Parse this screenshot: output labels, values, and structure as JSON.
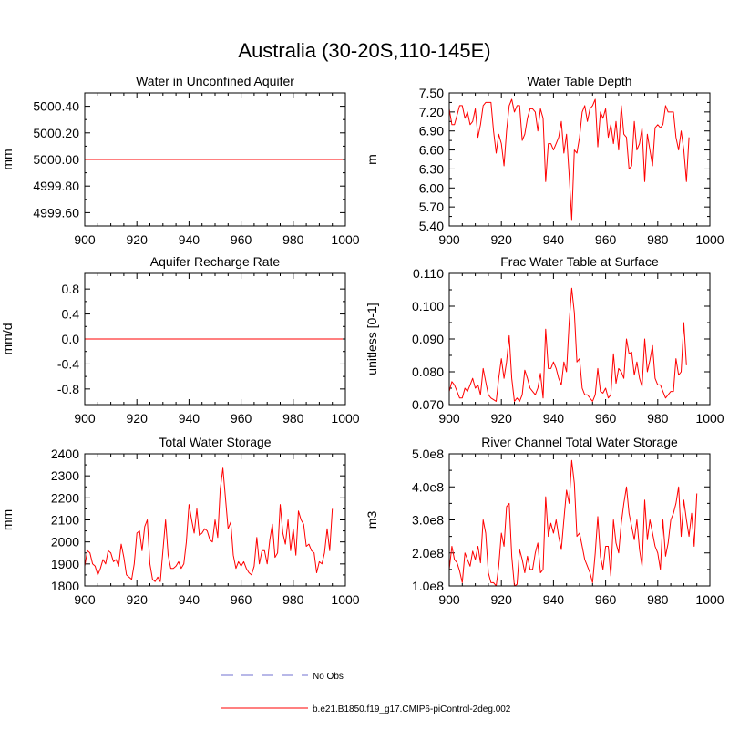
{
  "figure": {
    "title": "Australia (30-20S,110-145E)"
  },
  "legend": {
    "items": [
      {
        "label": "No Obs",
        "style": "dashed",
        "color": "#a0a0e0"
      },
      {
        "label": "b.e21.B1850.f19_g17.CMIP6-piControl-2deg.002",
        "style": "solid",
        "color": "#ff0000"
      }
    ]
  },
  "chart_data": [
    {
      "type": "line",
      "title": "Water in Unconfined Aquifer",
      "ylabel": "mm",
      "xlim": [
        900,
        1000
      ],
      "ylim": [
        4999.5,
        5000.5
      ],
      "xticks": [
        900,
        920,
        940,
        960,
        980,
        1000
      ],
      "yticks": [
        4999.6,
        4999.8,
        5000.0,
        5000.2,
        5000.4
      ],
      "yticklabels": [
        "4999.60",
        "4999.80",
        "5000.00",
        "5000.20",
        "5000.40"
      ],
      "series": [
        {
          "name": "b.e21.B1850.f19_g17.CMIP6-piControl-2deg.002",
          "color": "#ff0000",
          "x": [
            900,
            999
          ],
          "values": [
            5000.0,
            5000.0
          ]
        }
      ]
    },
    {
      "type": "line",
      "title": "Water Table Depth",
      "ylabel": "m",
      "xlim": [
        900,
        1000
      ],
      "ylim": [
        5.4,
        7.5
      ],
      "xticks": [
        900,
        920,
        940,
        960,
        980,
        1000
      ],
      "yticks": [
        5.4,
        5.7,
        6.0,
        6.3,
        6.6,
        6.9,
        7.2,
        7.5
      ],
      "yticklabels": [
        "5.40",
        "5.70",
        "6.00",
        "6.30",
        "6.60",
        "6.90",
        "7.20",
        "7.50"
      ],
      "series": [
        {
          "name": "b.e21.B1850.f19_g17.CMIP6-piControl-2deg.002",
          "color": "#ff0000",
          "x_start": 900,
          "values": [
            7.25,
            7.0,
            7.0,
            7.15,
            7.3,
            7.3,
            7.1,
            7.2,
            7.0,
            7.05,
            7.25,
            6.8,
            7.0,
            7.3,
            7.35,
            7.35,
            7.35,
            6.9,
            6.55,
            6.85,
            6.7,
            6.35,
            6.9,
            7.3,
            7.4,
            7.2,
            7.3,
            7.3,
            6.75,
            6.85,
            7.1,
            7.25,
            7.25,
            7.2,
            6.9,
            7.25,
            7.1,
            6.1,
            6.7,
            6.7,
            6.6,
            6.7,
            6.8,
            7.05,
            6.55,
            6.85,
            6.2,
            5.5,
            6.6,
            6.55,
            6.8,
            7.2,
            7.3,
            7.05,
            7.25,
            7.3,
            7.4,
            6.65,
            7.2,
            7.1,
            7.25,
            6.8,
            7.0,
            6.7,
            7.05,
            6.6,
            7.3,
            6.85,
            6.8,
            6.3,
            6.35,
            7.05,
            6.6,
            6.7,
            6.95,
            6.1,
            6.85,
            6.6,
            6.35,
            6.95,
            7.0,
            6.95,
            7.0,
            7.3,
            7.2,
            7.2,
            7.2,
            6.8,
            6.6,
            6.9,
            6.6,
            6.1,
            6.8
          ]
        }
      ]
    },
    {
      "type": "line",
      "title": "Aquifer Recharge Rate",
      "ylabel": "mm/d",
      "xlim": [
        900,
        1000
      ],
      "ylim": [
        -1.05,
        1.05
      ],
      "xticks": [
        900,
        920,
        940,
        960,
        980,
        1000
      ],
      "yticks": [
        -0.8,
        -0.4,
        0.0,
        0.4,
        0.8
      ],
      "yticklabels": [
        "-0.8",
        "-0.4",
        "0.0",
        "0.4",
        "0.8"
      ],
      "series": [
        {
          "name": "b.e21.B1850.f19_g17.CMIP6-piControl-2deg.002",
          "color": "#ff0000",
          "x": [
            900,
            999
          ],
          "values": [
            0.0,
            0.0
          ]
        }
      ]
    },
    {
      "type": "line",
      "title": "Frac Water Table at Surface",
      "ylabel": "unitless [0-1]",
      "xlim": [
        900,
        1000
      ],
      "ylim": [
        0.07,
        0.11
      ],
      "xticks": [
        900,
        920,
        940,
        960,
        980,
        1000
      ],
      "yticks": [
        0.07,
        0.08,
        0.09,
        0.1,
        0.11
      ],
      "yticklabels": [
        "0.070",
        "0.080",
        "0.090",
        "0.100",
        "0.110"
      ],
      "series": [
        {
          "name": "b.e21.B1850.f19_g17.CMIP6-piControl-2deg.002",
          "color": "#ff0000",
          "x_start": 900,
          "values": [
            0.074,
            0.077,
            0.076,
            0.074,
            0.072,
            0.072,
            0.075,
            0.074,
            0.076,
            0.078,
            0.075,
            0.076,
            0.073,
            0.081,
            0.077,
            0.073,
            0.072,
            0.0715,
            0.071,
            0.078,
            0.084,
            0.078,
            0.083,
            0.091,
            0.078,
            0.071,
            0.072,
            0.071,
            0.073,
            0.0805,
            0.078,
            0.075,
            0.074,
            0.073,
            0.075,
            0.0795,
            0.072,
            0.093,
            0.081,
            0.081,
            0.083,
            0.081,
            0.078,
            0.076,
            0.083,
            0.08,
            0.095,
            0.1055,
            0.098,
            0.083,
            0.084,
            0.075,
            0.073,
            0.073,
            0.072,
            0.071,
            0.073,
            0.081,
            0.074,
            0.0735,
            0.075,
            0.072,
            0.073,
            0.0855,
            0.0765,
            0.081,
            0.08,
            0.078,
            0.09,
            0.0855,
            0.086,
            0.079,
            0.083,
            0.078,
            0.0755,
            0.09,
            0.08,
            0.0835,
            0.088,
            0.078,
            0.076,
            0.076,
            0.074,
            0.072,
            0.073,
            0.074,
            0.074,
            0.084,
            0.079,
            0.08,
            0.095,
            0.082
          ]
        }
      ]
    },
    {
      "type": "line",
      "title": "Total Water Storage",
      "ylabel": "mm",
      "xlim": [
        900,
        1000
      ],
      "ylim": [
        1800,
        2400
      ],
      "xticks": [
        900,
        920,
        940,
        960,
        980,
        1000
      ],
      "yticks": [
        1800,
        1900,
        2000,
        2100,
        2200,
        2300,
        2400
      ],
      "yticklabels": [
        "1800",
        "1900",
        "2000",
        "2100",
        "2200",
        "2300",
        "2400"
      ],
      "series": [
        {
          "name": "b.e21.B1850.f19_g17.CMIP6-piControl-2deg.002",
          "color": "#ff0000",
          "x_start": 900,
          "values": [
            1890,
            1960,
            1950,
            1900,
            1890,
            1850,
            1880,
            1920,
            1900,
            1960,
            1950,
            1910,
            1920,
            1890,
            1990,
            1930,
            1850,
            1840,
            1830,
            1900,
            2040,
            2050,
            1960,
            2070,
            2100,
            1900,
            1830,
            1820,
            1840,
            1820,
            1960,
            2100,
            1940,
            1880,
            1880,
            1890,
            1910,
            1880,
            1900,
            2000,
            2170,
            2100,
            2040,
            2150,
            2030,
            2040,
            2060,
            2050,
            2010,
            2000,
            2100,
            2020,
            2240,
            2335,
            2200,
            2060,
            2090,
            1940,
            1880,
            1910,
            1890,
            1910,
            1880,
            1860,
            1850,
            1890,
            2020,
            1900,
            1960,
            1960,
            1900,
            2010,
            2080,
            1930,
            1950,
            2170,
            2040,
            1990,
            2100,
            1960,
            2060,
            1940,
            2140,
            2100,
            2080,
            1980,
            1990,
            1960,
            1950,
            1860,
            1910,
            1900,
            1950,
            2060,
            1960,
            2150
          ]
        }
      ]
    },
    {
      "type": "line",
      "title": "River Channel Total Water Storage",
      "ylabel": "m3",
      "xlim": [
        900,
        1000
      ],
      "ylim": [
        100000000,
        500000000
      ],
      "xticks": [
        900,
        920,
        940,
        960,
        980,
        1000
      ],
      "yticks": [
        100000000,
        200000000,
        300000000,
        400000000,
        500000000
      ],
      "yticklabels": [
        "1.0e8",
        "2.0e8",
        "3.0e8",
        "4.0e8",
        "5.0e8"
      ],
      "series": [
        {
          "name": "b.e21.B1850.f19_g17.CMIP6-piControl-2deg.002",
          "color": "#ff0000",
          "x_start": 900,
          "values": [
            150000000,
            220000000,
            180000000,
            170000000,
            145000000,
            110000000,
            200000000,
            180000000,
            160000000,
            205000000,
            180000000,
            220000000,
            170000000,
            300000000,
            260000000,
            140000000,
            110000000,
            110000000,
            100000000,
            160000000,
            260000000,
            220000000,
            340000000,
            350000000,
            190000000,
            100000000,
            105000000,
            210000000,
            180000000,
            140000000,
            190000000,
            150000000,
            150000000,
            200000000,
            230000000,
            140000000,
            150000000,
            370000000,
            250000000,
            290000000,
            260000000,
            300000000,
            250000000,
            210000000,
            300000000,
            390000000,
            350000000,
            480000000,
            410000000,
            250000000,
            260000000,
            220000000,
            180000000,
            160000000,
            140000000,
            110000000,
            200000000,
            310000000,
            190000000,
            150000000,
            220000000,
            220000000,
            130000000,
            300000000,
            230000000,
            200000000,
            290000000,
            350000000,
            400000000,
            320000000,
            280000000,
            240000000,
            300000000,
            210000000,
            160000000,
            360000000,
            240000000,
            300000000,
            260000000,
            220000000,
            200000000,
            150000000,
            300000000,
            190000000,
            230000000,
            300000000,
            320000000,
            350000000,
            400000000,
            250000000,
            360000000,
            300000000,
            250000000,
            320000000,
            220000000,
            380000000
          ]
        }
      ]
    }
  ]
}
